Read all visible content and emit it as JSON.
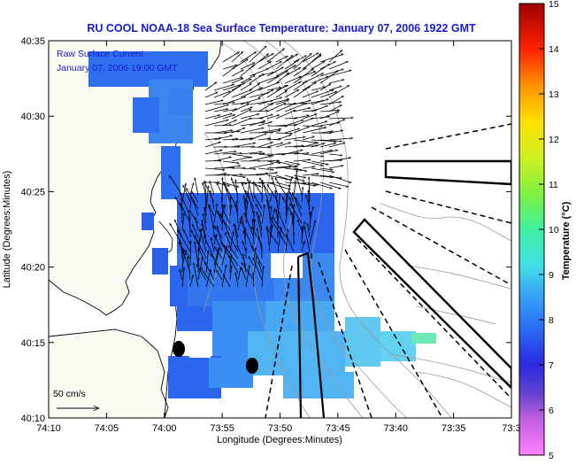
{
  "chart_data": {
    "type": "heatmap",
    "title": "RU COOL  NOAA-18  Sea Surface Temperature:  January 07, 2006 1922 GMT",
    "inset_lines": [
      "Raw Surface Current",
      "January 07, 2006 19:00 GMT"
    ],
    "xlabel": "Longitude (Degrees:Minutes)",
    "ylabel": "Latitude (Degrees:Minutes)",
    "x_ticks": [
      "74:10",
      "74:05",
      "74:00",
      "73:55",
      "73:50",
      "73:45",
      "73:40",
      "73:35",
      "73:3"
    ],
    "y_ticks": [
      "40:35",
      "40:30",
      "40:25",
      "40:20",
      "40:15",
      "40:10"
    ],
    "colorbar": {
      "label": "Temperature (°C)",
      "ticks": [
        "15",
        "14",
        "13",
        "12",
        "11",
        "10",
        "9",
        "8",
        "7",
        "6",
        "5"
      ],
      "range": [
        5,
        15
      ]
    },
    "scale_label": "50 cm/s",
    "colors": {
      "land": "#fafaf2",
      "water": "#ffffff",
      "title_blue": "#1a1ad0",
      "sst_dark": "#2e6ff0",
      "sst_mid": "#3b8ff2",
      "sst_light": "#52b4f2",
      "sst_cyan": "#62d2f0",
      "sst_green": "#6fe8b8"
    }
  }
}
